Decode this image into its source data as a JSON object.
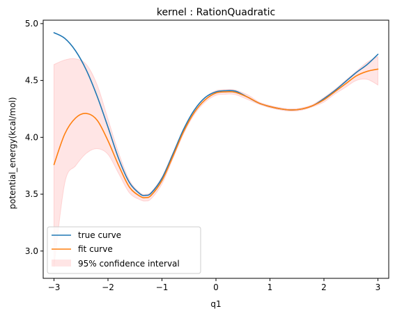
{
  "chart_data": {
    "type": "line",
    "title": "kernel : RationQuadratic",
    "xlabel": "q1",
    "ylabel": "potential_energy(kcal/mol)",
    "xlim": [
      -3.2,
      3.2
    ],
    "ylim": [
      2.76,
      5.03
    ],
    "grid": false,
    "legend_position": "lower-left",
    "x_ticks": [
      -3,
      -2,
      -1,
      0,
      1,
      2,
      3
    ],
    "y_ticks": [
      3.0,
      3.5,
      4.0,
      4.5,
      5.0
    ],
    "x_tick_labels": [
      "−3",
      "−2",
      "−1",
      "0",
      "1",
      "2",
      "3"
    ],
    "y_tick_labels": [
      "3.0",
      "3.5",
      "4.0",
      "4.5",
      "5.0"
    ],
    "x": [
      -3.0,
      -2.8,
      -2.6,
      -2.4,
      -2.2,
      -2.0,
      -1.8,
      -1.6,
      -1.4,
      -1.3,
      -1.2,
      -1.0,
      -0.8,
      -0.6,
      -0.4,
      -0.2,
      0.0,
      0.2,
      0.3,
      0.4,
      0.6,
      0.8,
      1.0,
      1.2,
      1.4,
      1.6,
      1.8,
      2.0,
      2.2,
      2.4,
      2.6,
      2.8,
      3.0
    ],
    "series": [
      {
        "name": "true curve",
        "color": "#1f77b4",
        "values": [
          4.92,
          4.87,
          4.76,
          4.59,
          4.36,
          4.09,
          3.81,
          3.6,
          3.5,
          3.49,
          3.51,
          3.64,
          3.85,
          4.07,
          4.24,
          4.35,
          4.4,
          4.41,
          4.41,
          4.4,
          4.35,
          4.3,
          4.27,
          4.25,
          4.24,
          4.25,
          4.28,
          4.34,
          4.41,
          4.49,
          4.57,
          4.64,
          4.73
        ]
      },
      {
        "name": "fit curve",
        "color": "#ff7f0e",
        "values": [
          3.76,
          4.03,
          4.17,
          4.21,
          4.15,
          3.97,
          3.75,
          3.56,
          3.48,
          3.47,
          3.49,
          3.62,
          3.83,
          4.05,
          4.22,
          4.33,
          4.39,
          4.4,
          4.4,
          4.39,
          4.35,
          4.3,
          4.27,
          4.25,
          4.24,
          4.25,
          4.28,
          4.33,
          4.4,
          4.47,
          4.54,
          4.58,
          4.6
        ]
      }
    ],
    "confidence_interval": {
      "name": "95% confidence interval",
      "color": "#ff9999",
      "lower": [
        2.86,
        3.6,
        3.75,
        3.86,
        3.9,
        3.85,
        3.68,
        3.51,
        3.45,
        3.44,
        3.46,
        3.59,
        3.81,
        4.03,
        4.2,
        4.31,
        4.37,
        4.38,
        4.38,
        4.37,
        4.33,
        4.29,
        4.26,
        4.24,
        4.23,
        4.24,
        4.27,
        4.31,
        4.38,
        4.44,
        4.5,
        4.51,
        4.46
      ],
      "upper": [
        4.64,
        4.68,
        4.69,
        4.64,
        4.46,
        4.16,
        3.86,
        3.62,
        3.51,
        3.5,
        3.52,
        3.65,
        3.86,
        4.07,
        4.24,
        4.35,
        4.41,
        4.42,
        4.42,
        4.41,
        4.37,
        4.31,
        4.28,
        4.26,
        4.25,
        4.26,
        4.29,
        4.35,
        4.42,
        4.5,
        4.58,
        4.66,
        4.71
      ]
    }
  }
}
